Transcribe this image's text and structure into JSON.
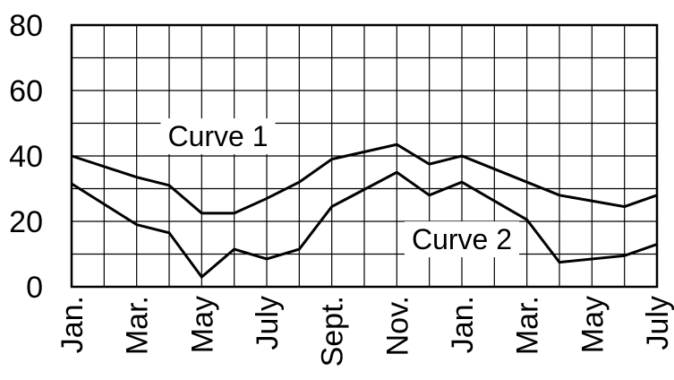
{
  "chart_data": {
    "type": "line",
    "title": "",
    "xlabel": "",
    "ylabel": "",
    "ylim": [
      0,
      80
    ],
    "y_ticks": [
      "0",
      "20",
      "40",
      "60",
      "80"
    ],
    "y_minor_step": 10,
    "grid": true,
    "legend": "none",
    "x_points": 19,
    "x_labels": [
      {
        "index": 0,
        "label": "Jan."
      },
      {
        "index": 2,
        "label": "Mar."
      },
      {
        "index": 4,
        "label": "May"
      },
      {
        "index": 6,
        "label": "July"
      },
      {
        "index": 8,
        "label": "Sept."
      },
      {
        "index": 10,
        "label": "Nov."
      },
      {
        "index": 12,
        "label": "Jan."
      },
      {
        "index": 14,
        "label": "Mar."
      },
      {
        "index": 16,
        "label": "May"
      },
      {
        "index": 18,
        "label": "July"
      }
    ],
    "series": [
      {
        "name": "Curve 1",
        "label_anchor": [
          4.5,
          46
        ],
        "points": [
          [
            0,
            40
          ],
          [
            2,
            33.5
          ],
          [
            3,
            31
          ],
          [
            4,
            22.5
          ],
          [
            5,
            22.5
          ],
          [
            6,
            27
          ],
          [
            7,
            32
          ],
          [
            8,
            39
          ],
          [
            10,
            43.5
          ],
          [
            11,
            37.5
          ],
          [
            12,
            40
          ],
          [
            14,
            32
          ],
          [
            15,
            28
          ],
          [
            17,
            24.5
          ],
          [
            18,
            28
          ]
        ]
      },
      {
        "name": "Curve 2",
        "label_anchor": [
          12,
          14.5
        ],
        "points": [
          [
            0,
            31.5
          ],
          [
            2,
            19
          ],
          [
            3,
            16.5
          ],
          [
            4,
            3
          ],
          [
            5,
            11.5
          ],
          [
            6,
            8.5
          ],
          [
            7,
            11.5
          ],
          [
            8,
            24.5
          ],
          [
            10,
            35
          ],
          [
            11,
            28
          ],
          [
            12,
            32
          ],
          [
            14,
            20.5
          ],
          [
            15,
            7.5
          ],
          [
            17,
            9.5
          ],
          [
            18,
            13
          ]
        ]
      }
    ],
    "line_color": "#000000",
    "grid_color": "#000000"
  }
}
